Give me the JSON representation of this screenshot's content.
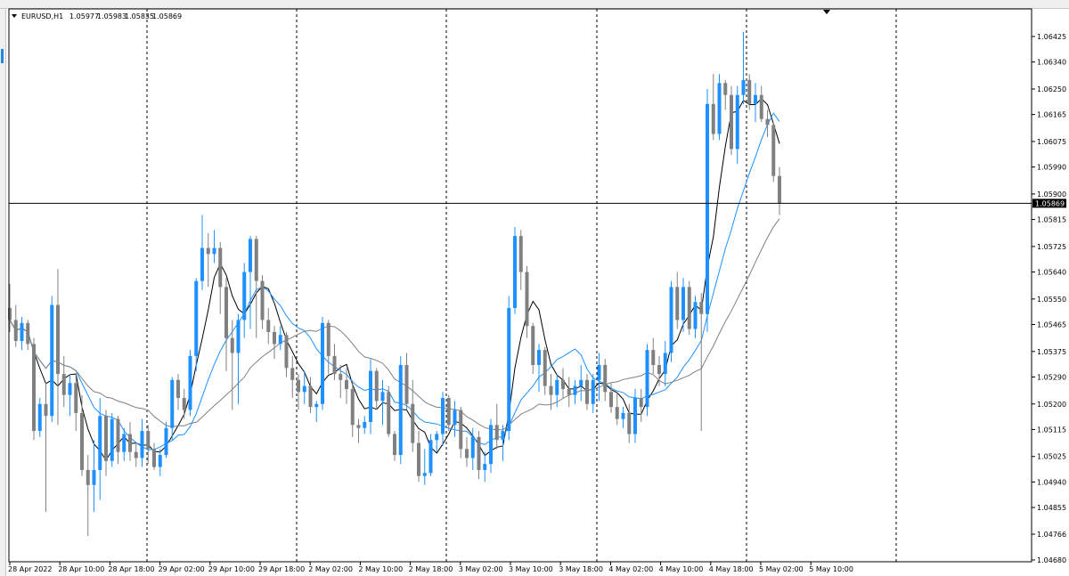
{
  "chart_data": {
    "type": "candlestick",
    "title": "EURUSD,H1",
    "ohlc_header": [
      "1.05977",
      "1.05983",
      "1.05835",
      "1.05869"
    ],
    "y_ticks": [
      "1.06425",
      "1.06340",
      "1.06250",
      "1.06165",
      "1.06075",
      "1.05990",
      "1.05900",
      "1.05815",
      "1.05725",
      "1.05640",
      "1.05550",
      "1.05465",
      "1.05375",
      "1.05290",
      "1.05200",
      "1.05115",
      "1.05025",
      "1.04940",
      "1.04855",
      "1.04766",
      "1.04680"
    ],
    "ylim": [
      1.0468,
      1.06425
    ],
    "current_price": "1.05869",
    "x_ticks": [
      "28 Apr 2022",
      "28 Apr 10:00",
      "28 Apr 18:00",
      "29 Apr 02:00",
      "29 Apr 10:00",
      "29 Apr 18:00",
      "2 May 02:00",
      "2 May 10:00",
      "2 May 18:00",
      "3 May 02:00",
      "3 May 10:00",
      "3 May 18:00",
      "4 May 02:00",
      "4 May 10:00",
      "4 May 18:00",
      "5 May 02:00",
      "5 May 10:00"
    ],
    "grid": "vertical dotted",
    "colors": {
      "bull": "#1e90ff",
      "bear": "#808080",
      "ma_fast": "#000000",
      "ma_mid": "#1e90ff",
      "ma_slow": "#808080"
    },
    "candles": [
      [
        1.0552,
        1.056,
        1.0544,
        1.0548
      ],
      [
        1.0548,
        1.0553,
        1.0539,
        1.0541
      ],
      [
        1.0541,
        1.0549,
        1.0538,
        1.0547
      ],
      [
        1.0547,
        1.0548,
        1.0538,
        1.054
      ],
      [
        1.054,
        1.0542,
        1.0508,
        1.0511
      ],
      [
        1.0511,
        1.0522,
        1.0509,
        1.052
      ],
      [
        1.052,
        1.0527,
        1.0484,
        1.0516
      ],
      [
        1.0516,
        1.0556,
        1.0514,
        1.0553
      ],
      [
        1.0553,
        1.0565,
        1.0513,
        1.053
      ],
      [
        1.053,
        1.0536,
        1.0519,
        1.0523
      ],
      [
        1.0523,
        1.053,
        1.0516,
        1.0527
      ],
      [
        1.0527,
        1.053,
        1.0511,
        1.0517
      ],
      [
        1.0517,
        1.0523,
        1.0496,
        1.0498
      ],
      [
        1.0498,
        1.0503,
        1.0476,
        1.0493
      ],
      [
        1.0493,
        1.0508,
        1.0484,
        1.0498
      ],
      [
        1.0498,
        1.0522,
        1.0488,
        1.0516
      ],
      [
        1.0516,
        1.0518,
        1.0496,
        1.0501
      ],
      [
        1.0501,
        1.0517,
        1.0499,
        1.0515
      ],
      [
        1.0515,
        1.0516,
        1.05,
        1.0504
      ],
      [
        1.0504,
        1.0512,
        1.0501,
        1.051
      ],
      [
        1.051,
        1.0514,
        1.0501,
        1.0504
      ],
      [
        1.0504,
        1.0507,
        1.0499,
        1.0502
      ],
      [
        1.0502,
        1.0515,
        1.0499,
        1.0511
      ],
      [
        1.0511,
        1.0513,
        1.05,
        1.0505
      ],
      [
        1.0505,
        1.0507,
        1.0498,
        1.0499
      ],
      [
        1.0499,
        1.0505,
        1.0496,
        1.0503
      ],
      [
        1.0503,
        1.0514,
        1.0502,
        1.0512
      ],
      [
        1.0512,
        1.0529,
        1.0508,
        1.0528
      ],
      [
        1.0528,
        1.053,
        1.0518,
        1.0522
      ],
      [
        1.0522,
        1.0525,
        1.0515,
        1.0518
      ],
      [
        1.0518,
        1.0538,
        1.0516,
        1.0536
      ],
      [
        1.0536,
        1.0562,
        1.0531,
        1.0561
      ],
      [
        1.0561,
        1.0583,
        1.0558,
        1.0572
      ],
      [
        1.0572,
        1.0577,
        1.0559,
        1.057
      ],
      [
        1.057,
        1.0578,
        1.0567,
        1.0572
      ],
      [
        1.0572,
        1.0574,
        1.055,
        1.0559
      ],
      [
        1.0559,
        1.0562,
        1.0531,
        1.0542
      ],
      [
        1.0542,
        1.0548,
        1.0518,
        1.0537
      ],
      [
        1.0537,
        1.055,
        1.052,
        1.0548
      ],
      [
        1.0548,
        1.0567,
        1.0542,
        1.0564
      ],
      [
        1.0564,
        1.0576,
        1.0545,
        1.0575
      ],
      [
        1.0575,
        1.0576,
        1.0542,
        1.0561
      ],
      [
        1.0561,
        1.0563,
        1.0545,
        1.0548
      ],
      [
        1.0548,
        1.0552,
        1.054,
        1.0544
      ],
      [
        1.0544,
        1.0546,
        1.0535,
        1.054
      ],
      [
        1.054,
        1.0546,
        1.0538,
        1.0543
      ],
      [
        1.0543,
        1.0544,
        1.0529,
        1.0532
      ],
      [
        1.0532,
        1.0536,
        1.0522,
        1.0528
      ],
      [
        1.0528,
        1.053,
        1.0518,
        1.0524
      ],
      [
        1.0524,
        1.0531,
        1.052,
        1.0526
      ],
      [
        1.0526,
        1.0529,
        1.0517,
        1.0519
      ],
      [
        1.0519,
        1.0521,
        1.0514,
        1.052
      ],
      [
        1.052,
        1.0549,
        1.0518,
        1.0547
      ],
      [
        1.0547,
        1.0548,
        1.053,
        1.0536
      ],
      [
        1.0536,
        1.054,
        1.0528,
        1.053
      ],
      [
        1.053,
        1.0533,
        1.0522,
        1.0528
      ],
      [
        1.0528,
        1.0532,
        1.052,
        1.0525
      ],
      [
        1.0525,
        1.0528,
        1.0509,
        1.0513
      ],
      [
        1.0513,
        1.0515,
        1.0507,
        1.0512
      ],
      [
        1.0512,
        1.0516,
        1.051,
        1.0514
      ],
      [
        1.0514,
        1.0535,
        1.051,
        1.0531
      ],
      [
        1.0531,
        1.0532,
        1.0518,
        1.0521
      ],
      [
        1.0521,
        1.0528,
        1.0513,
        1.0524
      ],
      [
        1.0524,
        1.0526,
        1.0509,
        1.051
      ],
      [
        1.051,
        1.0511,
        1.0501,
        1.0503
      ],
      [
        1.0503,
        1.0536,
        1.05,
        1.0533
      ],
      [
        1.0533,
        1.0537,
        1.0518,
        1.052
      ],
      [
        1.052,
        1.0528,
        1.0504,
        1.0507
      ],
      [
        1.0507,
        1.0511,
        1.0494,
        1.0496
      ],
      [
        1.0496,
        1.0505,
        1.0493,
        1.0497
      ],
      [
        1.0497,
        1.051,
        1.0496,
        1.0508
      ],
      [
        1.0508,
        1.0511,
        1.0504,
        1.051
      ],
      [
        1.051,
        1.0524,
        1.0506,
        1.0522
      ],
      [
        1.0522,
        1.0523,
        1.0511,
        1.0513
      ],
      [
        1.0513,
        1.0521,
        1.0509,
        1.0518
      ],
      [
        1.0518,
        1.0519,
        1.0502,
        1.0505
      ],
      [
        1.0505,
        1.0509,
        1.0499,
        1.0502
      ],
      [
        1.0502,
        1.0512,
        1.0498,
        1.0509
      ],
      [
        1.0509,
        1.0511,
        1.0495,
        1.0498
      ],
      [
        1.0498,
        1.0504,
        1.0494,
        1.05
      ],
      [
        1.05,
        1.0515,
        1.0497,
        1.0513
      ],
      [
        1.0513,
        1.052,
        1.0505,
        1.0508
      ],
      [
        1.0508,
        1.0513,
        1.0501,
        1.0511
      ],
      [
        1.0511,
        1.0556,
        1.0508,
        1.0552
      ],
      [
        1.0552,
        1.0579,
        1.055,
        1.0576
      ],
      [
        1.0576,
        1.0578,
        1.0558,
        1.0564
      ],
      [
        1.0564,
        1.0566,
        1.0542,
        1.0546
      ],
      [
        1.0546,
        1.0547,
        1.053,
        1.0533
      ],
      [
        1.0533,
        1.054,
        1.0524,
        1.0538
      ],
      [
        1.0538,
        1.0539,
        1.0523,
        1.0526
      ],
      [
        1.0526,
        1.053,
        1.0518,
        1.0523
      ],
      [
        1.0523,
        1.053,
        1.0519,
        1.0528
      ],
      [
        1.0528,
        1.0532,
        1.0522,
        1.0525
      ],
      [
        1.0525,
        1.0529,
        1.0519,
        1.0523
      ],
      [
        1.0523,
        1.0528,
        1.052,
        1.0526
      ],
      [
        1.0526,
        1.0533,
        1.0521,
        1.0528
      ],
      [
        1.0528,
        1.053,
        1.0518,
        1.052
      ],
      [
        1.052,
        1.053,
        1.0517,
        1.0528
      ],
      [
        1.0528,
        1.0537,
        1.0521,
        1.0533
      ],
      [
        1.0533,
        1.0535,
        1.0521,
        1.0524
      ],
      [
        1.0524,
        1.0527,
        1.0517,
        1.0519
      ],
      [
        1.0519,
        1.0524,
        1.0513,
        1.0515
      ],
      [
        1.0515,
        1.0519,
        1.0512,
        1.0517
      ],
      [
        1.0517,
        1.052,
        1.0507,
        1.051
      ],
      [
        1.051,
        1.0525,
        1.0507,
        1.0522
      ],
      [
        1.0522,
        1.0525,
        1.0514,
        1.0519
      ],
      [
        1.0519,
        1.054,
        1.0516,
        1.0538
      ],
      [
        1.0538,
        1.0542,
        1.053,
        1.0533
      ],
      [
        1.0533,
        1.0536,
        1.0526,
        1.053
      ],
      [
        1.053,
        1.0541,
        1.0526,
        1.0537
      ],
      [
        1.0537,
        1.0561,
        1.0534,
        1.0559
      ],
      [
        1.0559,
        1.0564,
        1.0545,
        1.0548
      ],
      [
        1.0548,
        1.0562,
        1.0544,
        1.0559
      ],
      [
        1.0559,
        1.0561,
        1.0543,
        1.0545
      ],
      [
        1.0545,
        1.0556,
        1.0542,
        1.0554
      ],
      [
        1.0554,
        1.0557,
        1.0511,
        1.055
      ],
      [
        1.055,
        1.0625,
        1.0544,
        1.062
      ],
      [
        1.062,
        1.063,
        1.0608,
        1.061
      ],
      [
        1.061,
        1.063,
        1.0608,
        1.0627
      ],
      [
        1.0627,
        1.0628,
        1.0618,
        1.0623
      ],
      [
        1.0623,
        1.0626,
        1.0603,
        1.0605
      ],
      [
        1.0605,
        1.0626,
        1.06,
        1.0623
      ],
      [
        1.0623,
        1.0644,
        1.062,
        1.0628
      ],
      [
        1.0628,
        1.063,
        1.0618,
        1.062
      ],
      [
        1.062,
        1.0627,
        1.0614,
        1.0623
      ],
      [
        1.0623,
        1.0626,
        1.0614,
        1.0615
      ],
      [
        1.0615,
        1.0618,
        1.0609,
        1.0613
      ],
      [
        1.0613,
        1.0614,
        1.0594,
        1.0596
      ],
      [
        1.0596,
        1.0599,
        1.0583,
        1.0587
      ]
    ]
  }
}
